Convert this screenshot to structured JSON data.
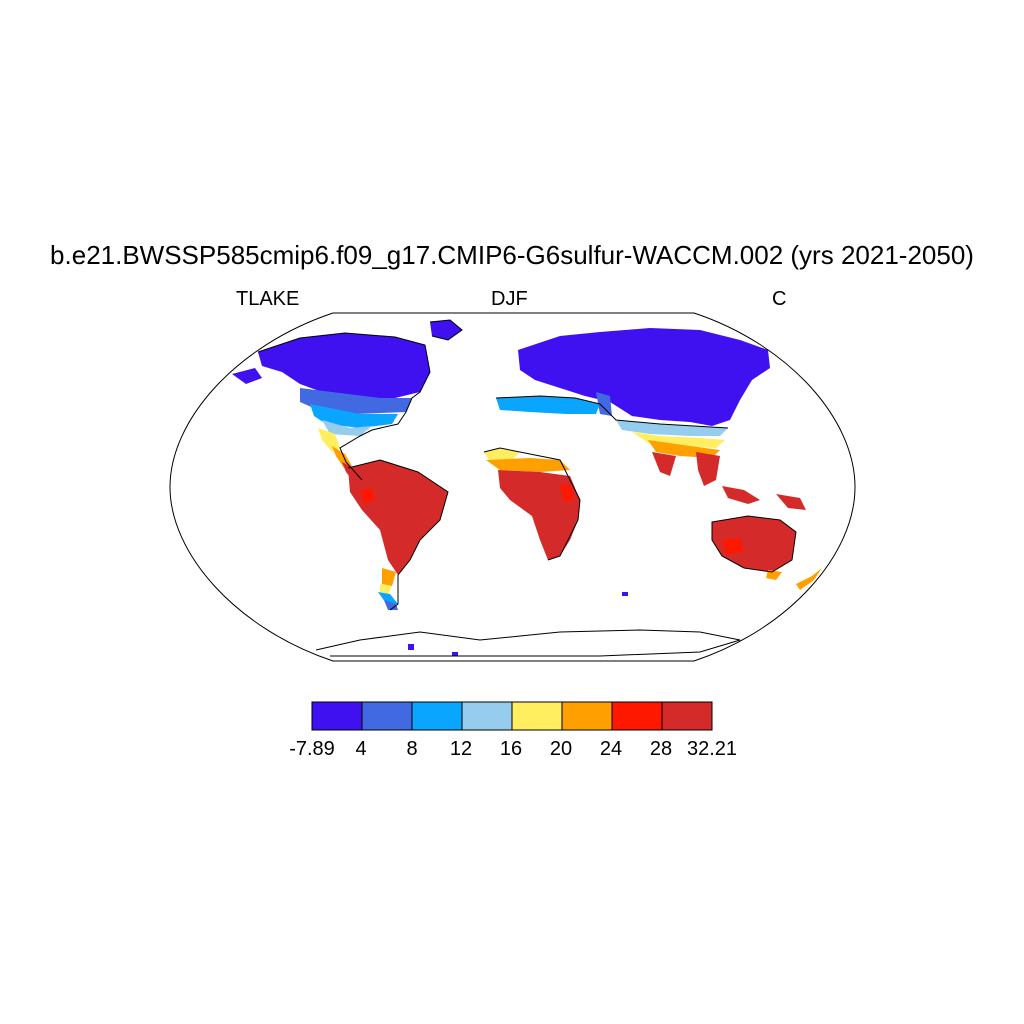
{
  "title": "b.e21.BWSSP585cmip6.f09_g17.CMIP6-G6sulfur-WACCM.002 (yrs 2021-2050)",
  "left_label": "TLAKE",
  "center_label": "DJF",
  "right_label": "C",
  "colorbar": {
    "labels": [
      "-7.89",
      "4",
      "8",
      "12",
      "16",
      "20",
      "24",
      "28",
      "32.21"
    ],
    "colors": [
      "#3f10f0",
      "#4169e1",
      "#0aa5ff",
      "#96cdee",
      "#ffee60",
      "#ff9f00",
      "#ff1800",
      "#d42a2a"
    ]
  }
}
